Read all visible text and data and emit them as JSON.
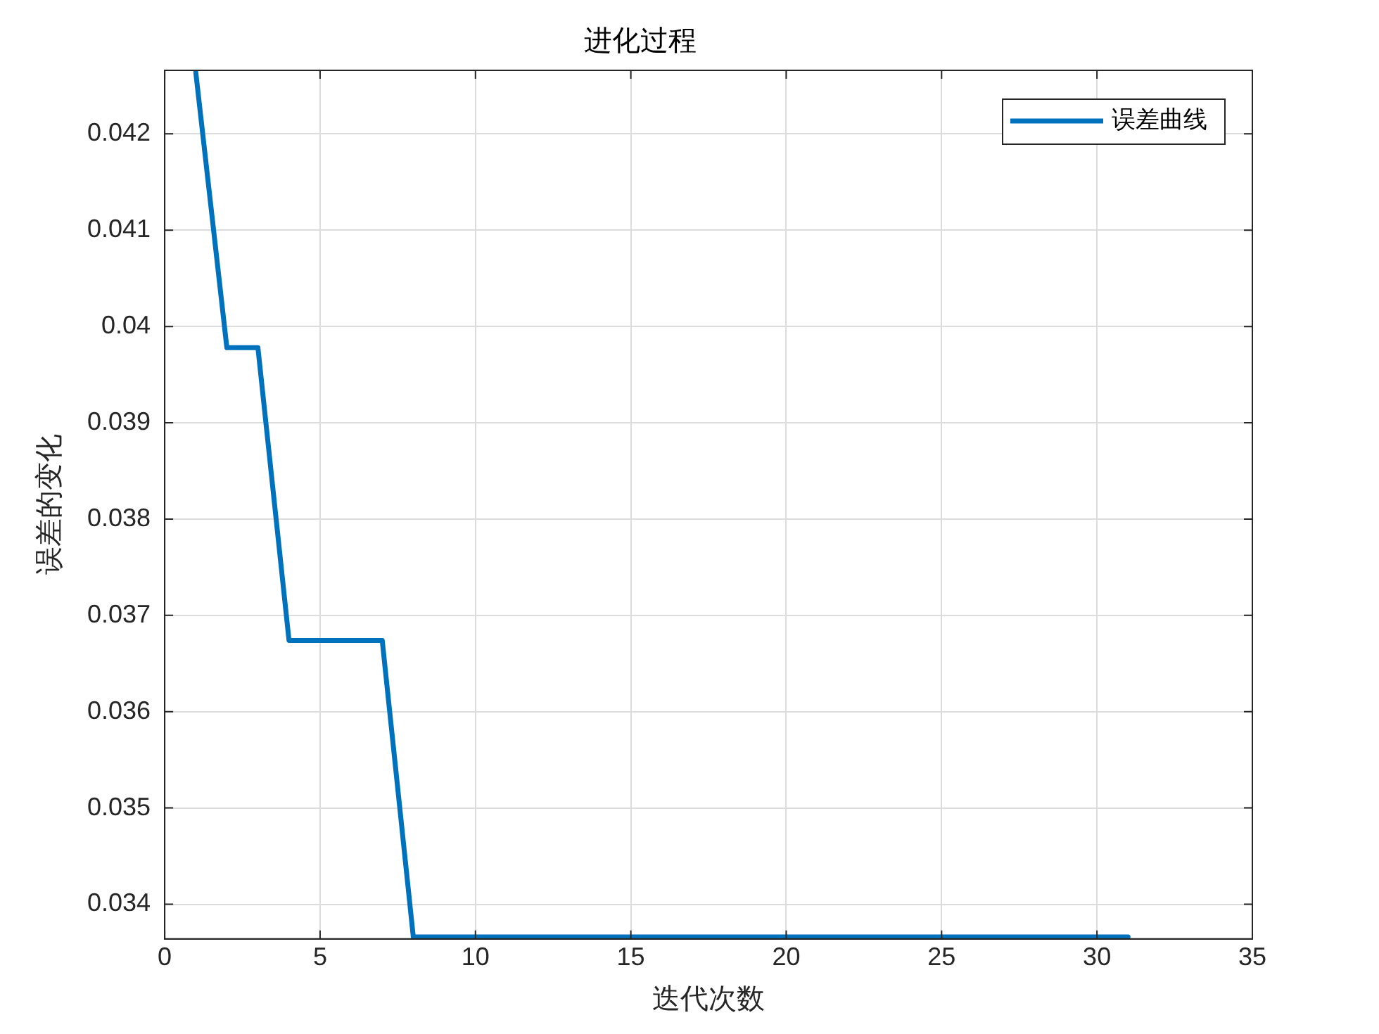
{
  "chart_data": {
    "type": "line",
    "title": "进化过程",
    "xlabel": "迭代次数",
    "ylabel": "误差的变化",
    "x": [
      1,
      2,
      3,
      4,
      5,
      6,
      7,
      8,
      9,
      10,
      11,
      12,
      13,
      14,
      15,
      16,
      17,
      18,
      19,
      20,
      21,
      22,
      23,
      24,
      25,
      26,
      27,
      28,
      29,
      30,
      31
    ],
    "series": [
      {
        "name": "误差曲线",
        "color": "#0072bd",
        "values": [
          0.04264,
          0.03978,
          0.03978,
          0.03674,
          0.03674,
          0.03674,
          0.03674,
          0.03366,
          0.03366,
          0.03366,
          0.03366,
          0.03366,
          0.03366,
          0.03366,
          0.03366,
          0.03366,
          0.03366,
          0.03366,
          0.03366,
          0.03366,
          0.03366,
          0.03366,
          0.03366,
          0.03366,
          0.03366,
          0.03366,
          0.03366,
          0.03366,
          0.03366,
          0.03366,
          0.03366
        ]
      }
    ],
    "xlim": [
      0,
      35
    ],
    "xticks": [
      0,
      5,
      10,
      15,
      20,
      25,
      30,
      35
    ],
    "ylim": [
      0.03364,
      0.04266
    ],
    "yticks": [
      {
        "value": 0.034,
        "label": "0.034"
      },
      {
        "value": 0.035,
        "label": "0.035"
      },
      {
        "value": 0.036,
        "label": "0.036"
      },
      {
        "value": 0.037,
        "label": "0.037"
      },
      {
        "value": 0.038,
        "label": "0.038"
      },
      {
        "value": 0.039,
        "label": "0.039"
      },
      {
        "value": 0.04,
        "label": "0.04"
      },
      {
        "value": 0.041,
        "label": "0.041"
      },
      {
        "value": 0.042,
        "label": "0.042"
      }
    ],
    "grid": true,
    "legend": "top right",
    "marker": "none",
    "line_style": "solid"
  }
}
